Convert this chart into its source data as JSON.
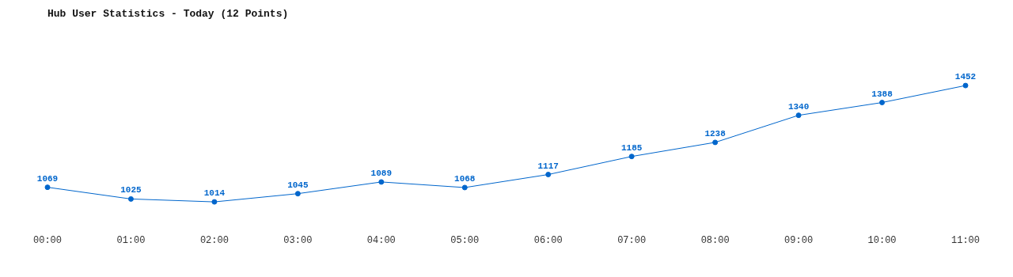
{
  "chart_data": {
    "type": "line",
    "title": "Hub User Statistics - Today (12 Points)",
    "categories": [
      "00:00",
      "01:00",
      "02:00",
      "03:00",
      "04:00",
      "05:00",
      "06:00",
      "07:00",
      "08:00",
      "09:00",
      "10:00",
      "11:00"
    ],
    "values": [
      1069,
      1025,
      1014,
      1045,
      1089,
      1068,
      1117,
      1185,
      1238,
      1340,
      1388,
      1452
    ],
    "color": "#0066cc",
    "tick_labels": "x",
    "data_labels": true,
    "marker": "circle",
    "line_style": "solid",
    "grid": false,
    "legend": false
  }
}
